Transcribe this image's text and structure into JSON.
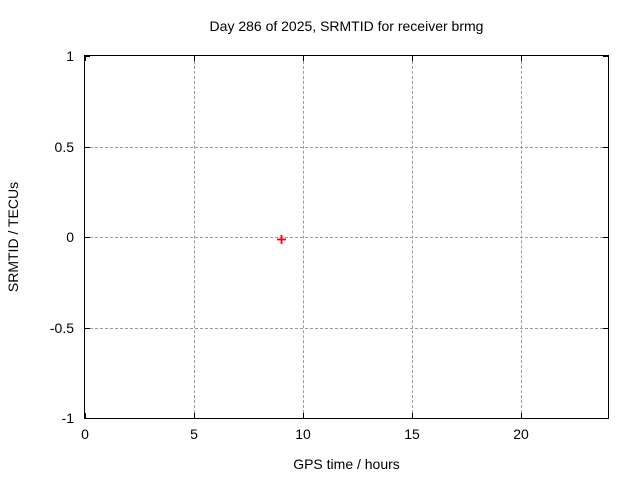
{
  "chart_data": {
    "type": "scatter",
    "title": "Day 286 of 2025, SRMTID for receiver brmg",
    "xlabel": "GPS time / hours",
    "ylabel": "SRMTID / TECUs",
    "xlim": [
      0,
      24
    ],
    "ylim": [
      -1,
      1
    ],
    "xticks": [
      0,
      5,
      10,
      15,
      20
    ],
    "yticks": [
      -1,
      -0.5,
      0,
      0.5,
      1
    ],
    "grid": true,
    "legend_position": "none",
    "series": [
      {
        "name": "SRMTID",
        "marker": "plus",
        "color": "#ff0000",
        "points": [
          [
            9.0,
            0.0
          ]
        ]
      }
    ]
  },
  "colors": {
    "background": "#ffffff",
    "axis": "#000000",
    "grid": "#9c9c9c",
    "text": "#000000",
    "marker": "#ff0000"
  }
}
